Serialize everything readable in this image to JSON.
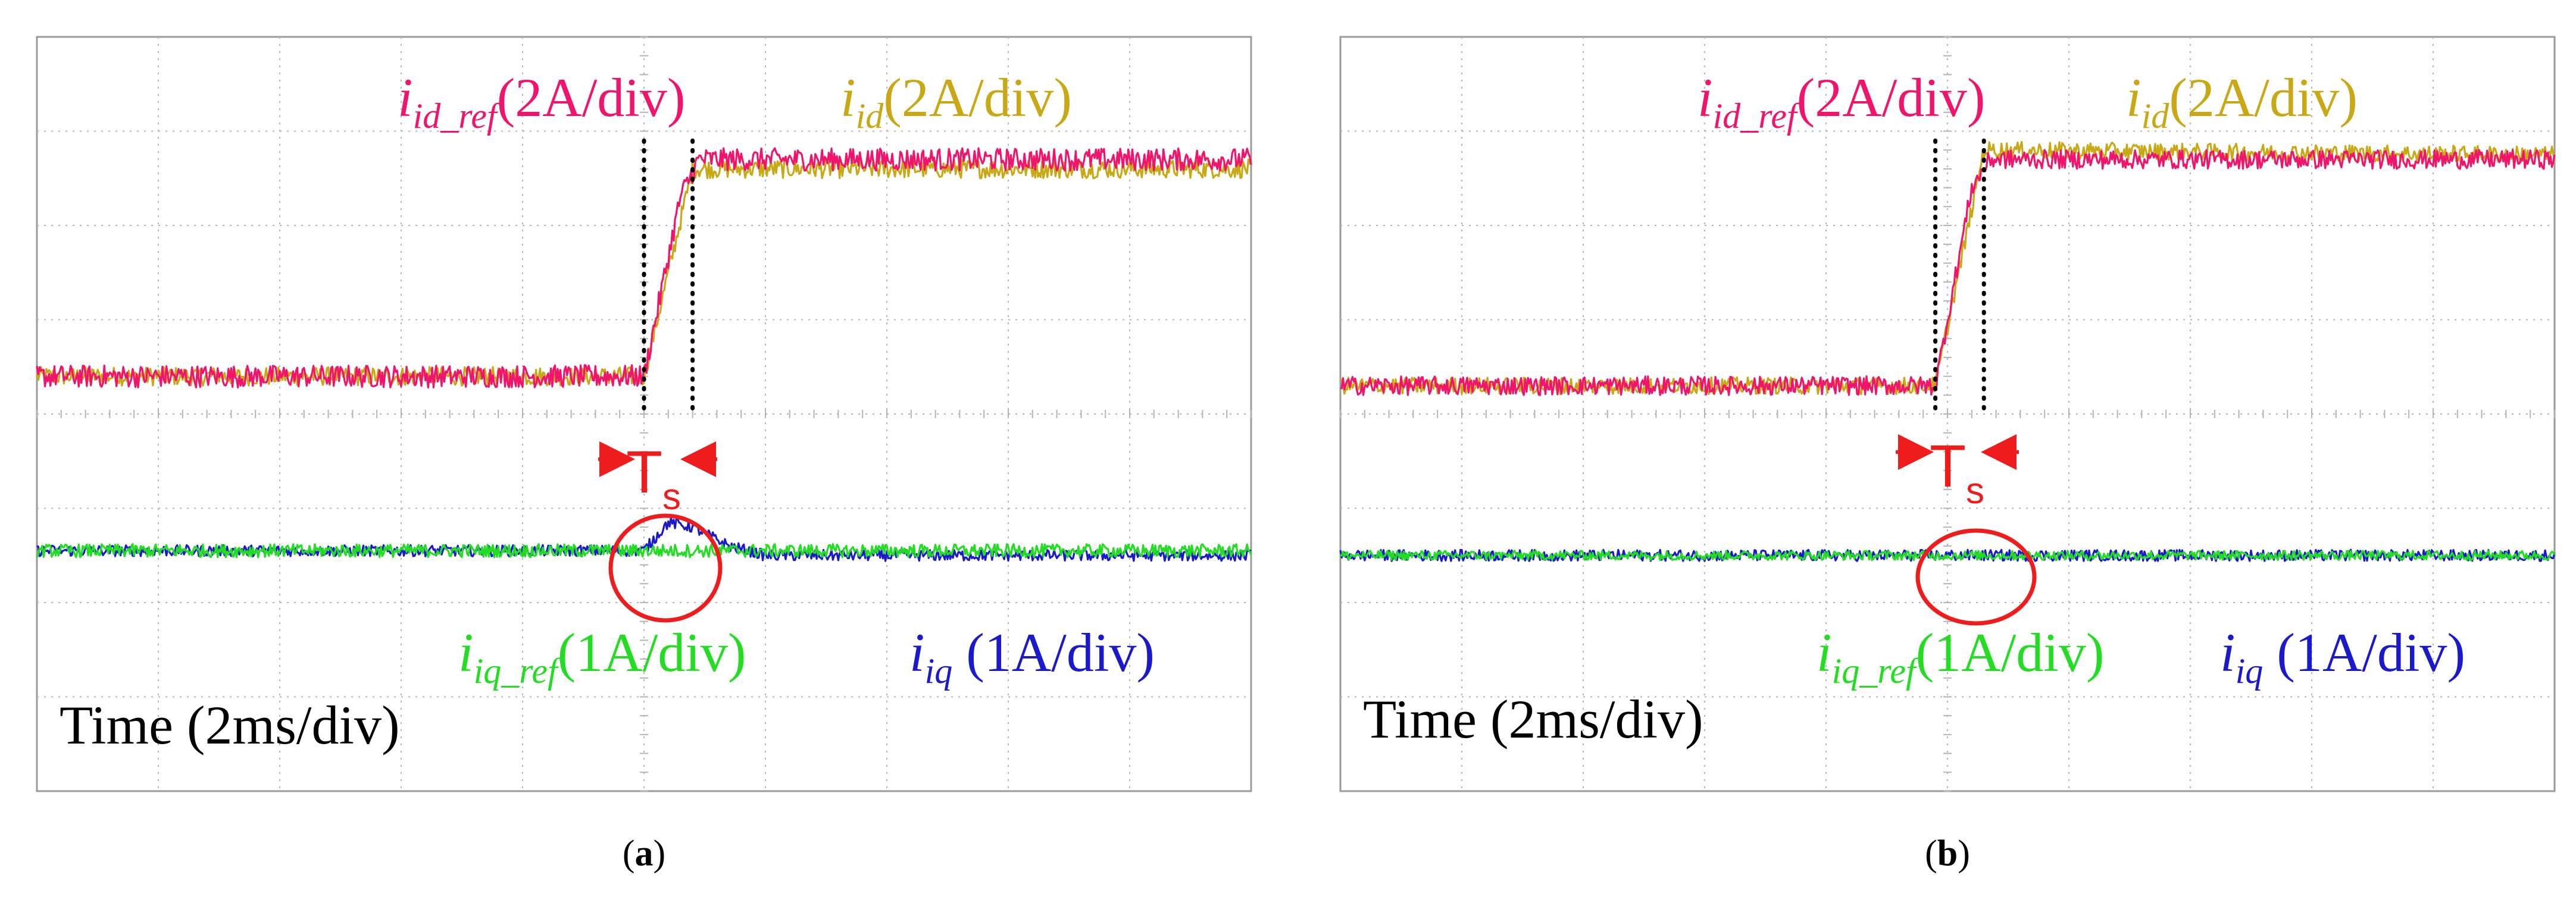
{
  "figure": {
    "panels": [
      {
        "caption_letter": "a",
        "title": "",
        "time_label": "Time (2ms/div)",
        "ts_label": "T",
        "ts_sub": "s",
        "labels": {
          "id_ref": {
            "main": "i",
            "sub": "id_ref",
            "scale": "(2A/div)"
          },
          "id": {
            "main": "i",
            "sub": "id",
            "scale": "(2A/div)"
          },
          "iq_ref": {
            "main": "i",
            "sub": "iq_ref",
            "scale": "(1A/div)"
          },
          "iq": {
            "main": "i",
            "sub": "iq",
            "scale": " (1A/div)"
          }
        }
      },
      {
        "caption_letter": "b",
        "title": "",
        "time_label": "Time (2ms/div)",
        "ts_label": "T",
        "ts_sub": "s",
        "labels": {
          "id_ref": {
            "main": "i",
            "sub": "id_ref",
            "scale": "(2A/div)"
          },
          "id": {
            "main": "i",
            "sub": "id",
            "scale": "(2A/div)"
          },
          "iq_ref": {
            "main": "i",
            "sub": "iq_ref",
            "scale": "(1A/div)"
          },
          "iq": {
            "main": "i",
            "sub": "iq",
            "scale": " (1A/div)"
          }
        }
      }
    ]
  },
  "colors": {
    "id_ref": "#f0146c",
    "id": "#c8a814",
    "iq_ref": "#22dd22",
    "iq": "#1a1acc",
    "annotation": "#ee1c1c",
    "grid": "#b4b4b4",
    "frame": "#9a9a9a"
  },
  "chart_data": [
    {
      "type": "line",
      "panel": "a",
      "title": "",
      "xlabel": "Time (2ms/div)",
      "ylabel": "",
      "x_unit": "div",
      "xlim": [
        0,
        10
      ],
      "ylim": [
        0,
        8
      ],
      "grid": true,
      "step_time_div": 5.0,
      "ts_div": 0.4,
      "series": [
        {
          "name": "i_id_ref",
          "scale": "2A/div",
          "x": [
            0,
            5.0,
            5.3,
            5.45,
            10
          ],
          "y": [
            4.4,
            4.4,
            6.3,
            6.7,
            6.7
          ],
          "noise_div": 0.12
        },
        {
          "name": "i_id",
          "scale": "2A/div",
          "x": [
            0,
            5.0,
            5.4,
            10
          ],
          "y": [
            4.4,
            4.4,
            6.6,
            6.6
          ],
          "noise_div": 0.1
        },
        {
          "name": "i_iq_ref",
          "scale": "1A/div",
          "x": [
            0,
            10
          ],
          "y": [
            2.55,
            2.55
          ],
          "noise_div": 0.07
        },
        {
          "name": "i_iq",
          "scale": "1A/div",
          "x": [
            0,
            5.0,
            5.2,
            5.4,
            5.7,
            6.0,
            10
          ],
          "y": [
            2.55,
            2.55,
            2.85,
            2.8,
            2.6,
            2.5,
            2.5
          ],
          "noise_div": 0.06
        }
      ],
      "annotations": [
        "T_s",
        "circled i_iq transient"
      ]
    },
    {
      "type": "line",
      "panel": "b",
      "title": "",
      "xlabel": "Time (2ms/div)",
      "ylabel": "",
      "x_unit": "div",
      "xlim": [
        0,
        10
      ],
      "ylim": [
        0,
        8
      ],
      "grid": true,
      "step_time_div": 4.9,
      "ts_div": 0.4,
      "series": [
        {
          "name": "i_id_ref",
          "scale": "2A/div",
          "x": [
            0,
            4.9,
            5.2,
            5.35,
            10
          ],
          "y": [
            4.3,
            4.3,
            6.4,
            6.7,
            6.7
          ],
          "noise_div": 0.1
        },
        {
          "name": "i_id",
          "scale": "2A/div",
          "x": [
            0,
            4.9,
            5.3,
            10
          ],
          "y": [
            4.3,
            4.3,
            6.8,
            6.75
          ],
          "noise_div": 0.09
        },
        {
          "name": "i_iq_ref",
          "scale": "1A/div",
          "x": [
            0,
            10
          ],
          "y": [
            2.5,
            2.5
          ],
          "noise_div": 0.05
        },
        {
          "name": "i_iq",
          "scale": "1A/div",
          "x": [
            0,
            10
          ],
          "y": [
            2.5,
            2.5
          ],
          "noise_div": 0.06
        }
      ],
      "annotations": [
        "T_s",
        "circled i_iq (no transient)"
      ]
    }
  ]
}
